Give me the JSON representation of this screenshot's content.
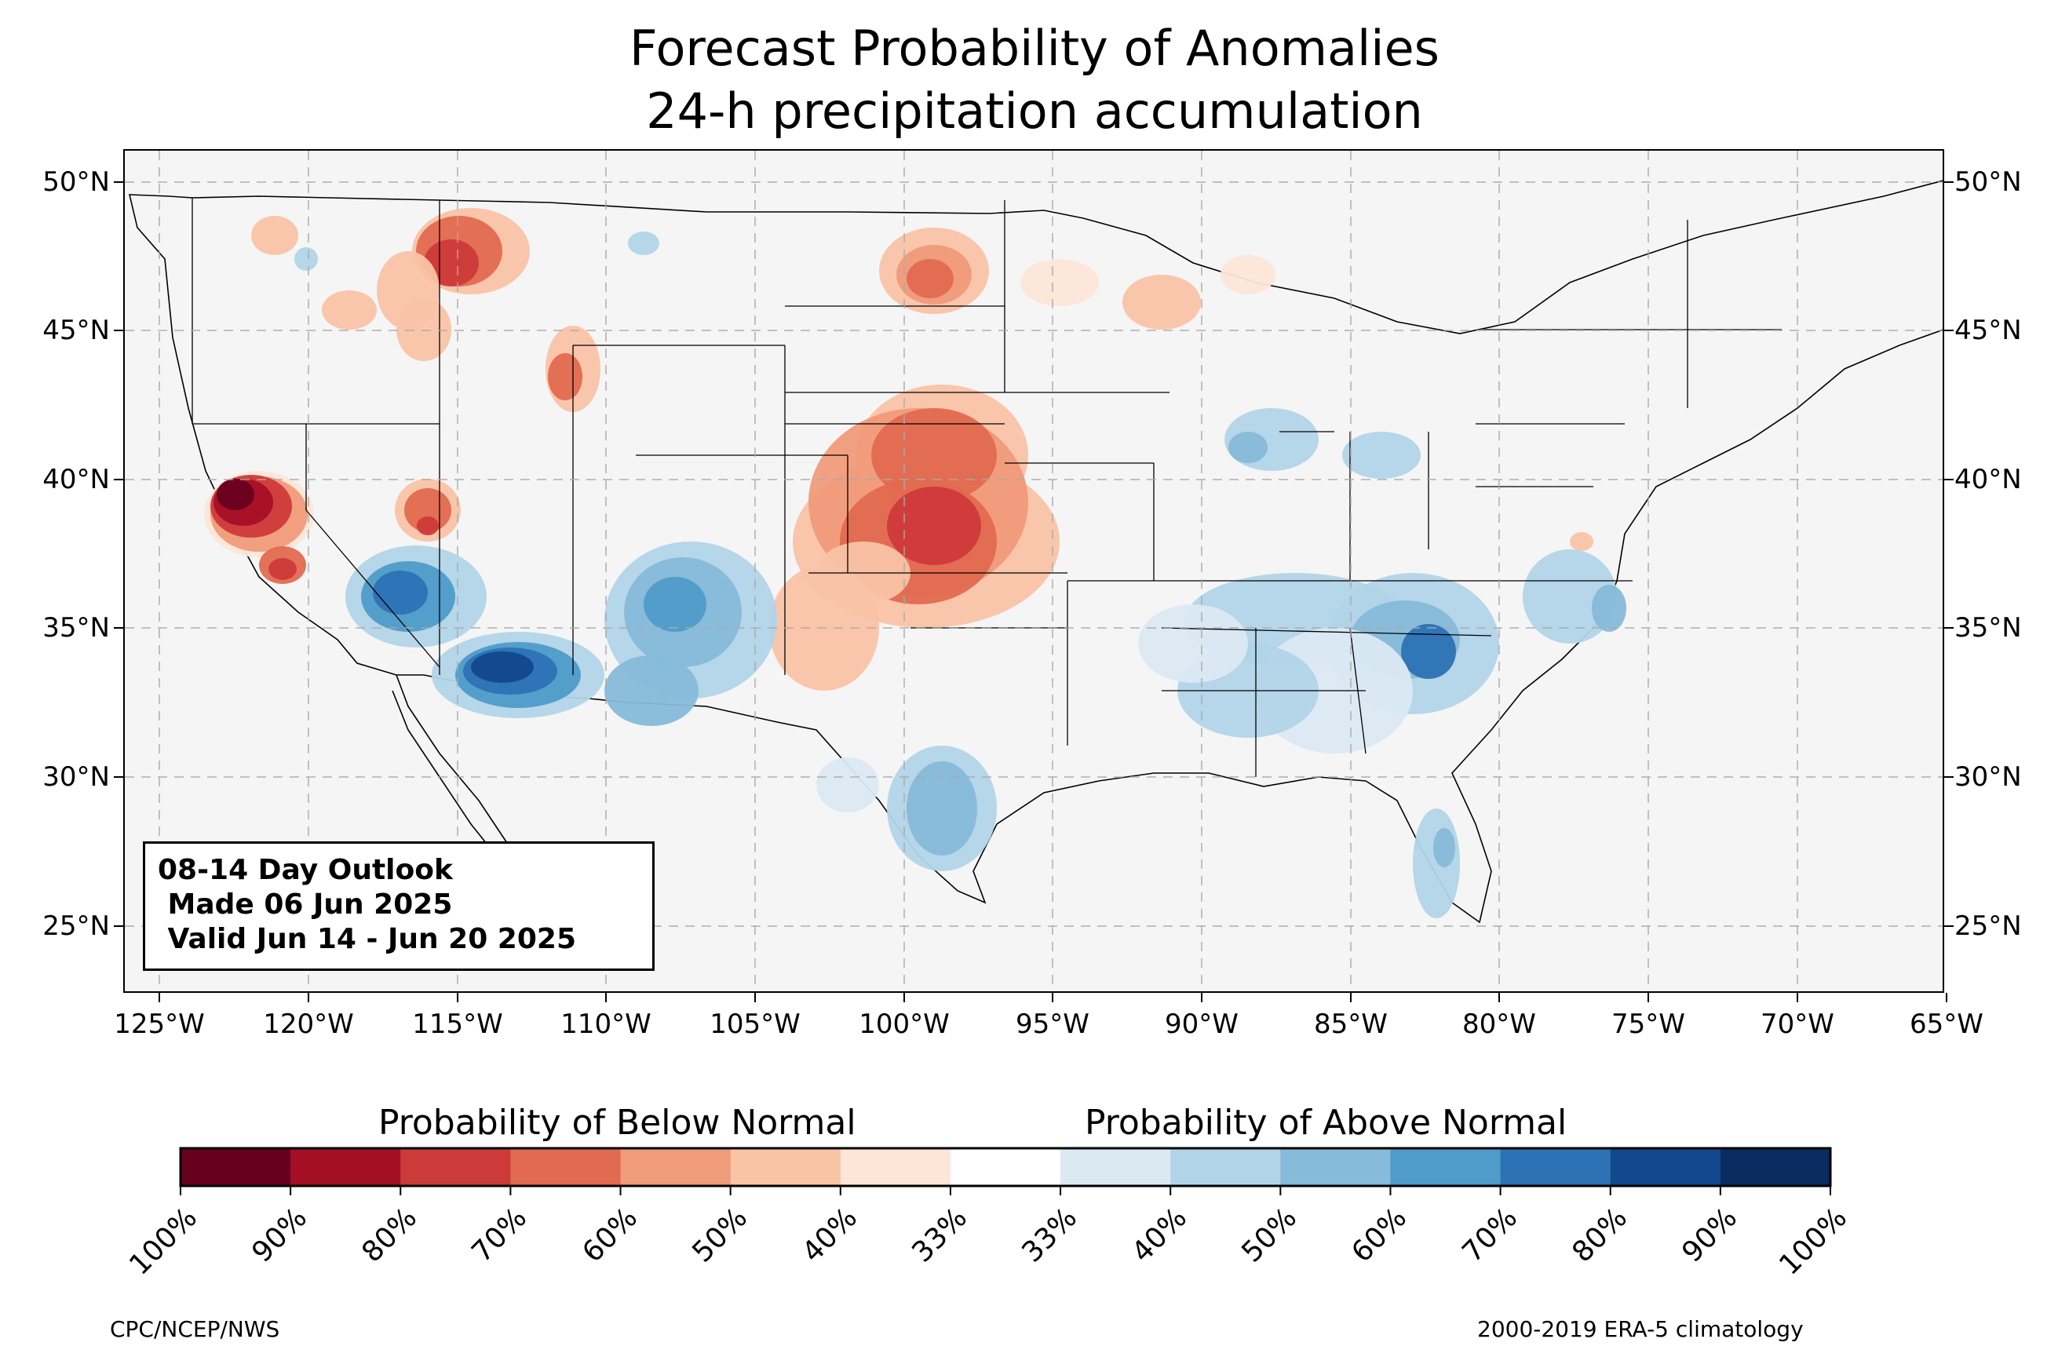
{
  "title": {
    "line1": "Forecast Probability of Anomalies",
    "line2": "24-h precipitation accumulation"
  },
  "axes": {
    "lat_ticks": [
      "50°N",
      "45°N",
      "40°N",
      "35°N",
      "30°N",
      "25°N"
    ],
    "lon_ticks": [
      "125°W",
      "120°W",
      "115°W",
      "110°W",
      "105°W",
      "100°W",
      "95°W",
      "90°W",
      "85°W",
      "80°W",
      "75°W",
      "70°W",
      "65°W"
    ]
  },
  "outlook": {
    "line1": "08-14 Day Outlook",
    "line2": " Made 06 Jun 2025",
    "line3": " Valid Jun 14 - Jun 20 2025"
  },
  "colorbar": {
    "below_label": "Probability of Below Normal",
    "above_label": "Probability of Above Normal",
    "ticks": [
      "100%",
      "90%",
      "80%",
      "70%",
      "60%",
      "50%",
      "40%",
      "33%",
      "33%",
      "40%",
      "50%",
      "60%",
      "70%",
      "80%",
      "90%",
      "100%"
    ],
    "colors": [
      "#67001f",
      "#a50f26",
      "#cd3a3a",
      "#e26a50",
      "#f09b7a",
      "#f9c3a6",
      "#fde6d8",
      "#ffffff",
      "#dbe9f3",
      "#b2d4e8",
      "#86bbd9",
      "#4f9bc9",
      "#2c72b4",
      "#12488d",
      "#0a2c61"
    ]
  },
  "footer": {
    "left": "CPC/NCEP/NWS",
    "right": "2000-2019 ERA-5 climatology"
  },
  "chart_data": {
    "type": "heatmap",
    "map_extent": {
      "lon": [
        -126.2,
        -64.8
      ],
      "lat": [
        22.8,
        51.2
      ]
    },
    "grid": true,
    "legend_placement": "bottom",
    "regions": [
      {
        "area": "northern California",
        "category": "below",
        "peak": "80-90%"
      },
      {
        "area": "eastern Nevada",
        "category": "below",
        "peak": "60-70%"
      },
      {
        "area": "northern Idaho / western Montana",
        "category": "below",
        "peak": "60-70%"
      },
      {
        "area": "western Wyoming",
        "category": "below",
        "peak": "50-60%"
      },
      {
        "area": "North Dakota",
        "category": "below",
        "peak": "60-70%"
      },
      {
        "area": "Kansas / Nebraska / Oklahoma",
        "category": "below",
        "peak": "70-80%"
      },
      {
        "area": "Upper Great Lakes",
        "category": "below",
        "peak": "40-50%"
      },
      {
        "area": "southern California / Arizona",
        "category": "above",
        "peak": "70-80%"
      },
      {
        "area": "New Mexico",
        "category": "above",
        "peak": "60-70%"
      },
      {
        "area": "southern Texas",
        "category": "above",
        "peak": "50-60%"
      },
      {
        "area": "Tennessee Valley / Southeast",
        "category": "above",
        "peak": "60-70%"
      },
      {
        "area": "Illinois / Indiana / Ohio",
        "category": "above",
        "peak": "40-50%"
      },
      {
        "area": "Florida peninsula",
        "category": "above",
        "peak": "40-50%"
      }
    ]
  }
}
